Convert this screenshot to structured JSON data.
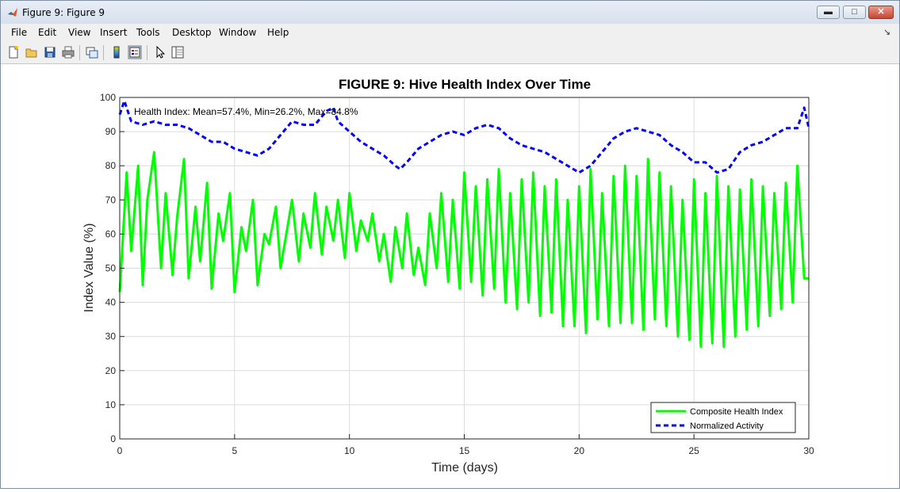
{
  "window": {
    "title": "Figure 9: Figure 9",
    "icon": "matlab-icon",
    "controls": [
      "minimize-icon",
      "maximize-icon",
      "close-icon"
    ]
  },
  "menu": {
    "items": [
      "File",
      "Edit",
      "View",
      "Insert",
      "Tools",
      "Desktop",
      "Window",
      "Help"
    ]
  },
  "toolbar": {
    "icons": [
      "new-figure-icon",
      "open-file-icon",
      "save-icon",
      "print-icon",
      "link-plot-icon",
      "colorbar-icon",
      "legend-icon",
      "select-pointer-icon",
      "property-editor-icon"
    ]
  },
  "chart_data": {
    "type": "line",
    "title": "FIGURE 9: Hive Health Index Over Time",
    "xlabel": "Time (days)",
    "ylabel": "Index Value (%)",
    "xlim": [
      0,
      30
    ],
    "ylim": [
      0,
      100
    ],
    "xticks": [
      0,
      5,
      10,
      15,
      20,
      25,
      30
    ],
    "yticks": [
      0,
      10,
      20,
      30,
      40,
      50,
      60,
      70,
      80,
      90,
      100
    ],
    "grid": true,
    "legend_position": "bottom-right",
    "annotation": "Health Index: Mean=57.4%, Min=26.2%, Max=84.8%",
    "series": [
      {
        "name": "Composite Health Index",
        "color": "#00ff00",
        "style": "solid",
        "x": [
          0,
          0.3,
          0.5,
          0.8,
          1.0,
          1.2,
          1.5,
          1.8,
          2.0,
          2.3,
          2.5,
          2.8,
          3.0,
          3.3,
          3.5,
          3.8,
          4.0,
          4.3,
          4.5,
          4.8,
          5.0,
          5.3,
          5.5,
          5.8,
          6.0,
          6.3,
          6.5,
          6.8,
          7.0,
          7.3,
          7.5,
          7.8,
          8.0,
          8.3,
          8.5,
          8.8,
          9.0,
          9.3,
          9.5,
          9.8,
          10.0,
          10.3,
          10.5,
          10.8,
          11.0,
          11.3,
          11.5,
          11.8,
          12.0,
          12.3,
          12.5,
          12.8,
          13.0,
          13.3,
          13.5,
          13.8,
          14.0,
          14.3,
          14.5,
          14.8,
          15.0,
          15.3,
          15.5,
          15.8,
          16.0,
          16.3,
          16.5,
          16.8,
          17.0,
          17.3,
          17.5,
          17.8,
          18.0,
          18.3,
          18.5,
          18.8,
          19.0,
          19.3,
          19.5,
          19.8,
          20.0,
          20.3,
          20.5,
          20.8,
          21.0,
          21.3,
          21.5,
          21.8,
          22.0,
          22.3,
          22.5,
          22.8,
          23.0,
          23.3,
          23.5,
          23.8,
          24.0,
          24.3,
          24.5,
          24.8,
          25.0,
          25.3,
          25.5,
          25.8,
          26.0,
          26.3,
          26.5,
          26.8,
          27.0,
          27.3,
          27.5,
          27.8,
          28.0,
          28.3,
          28.5,
          28.8,
          29.0,
          29.3,
          29.5,
          29.8,
          30.0
        ],
        "y": [
          43,
          78,
          55,
          80,
          45,
          70,
          84,
          50,
          72,
          48,
          65,
          82,
          47,
          68,
          52,
          75,
          44,
          66,
          58,
          72,
          43,
          62,
          55,
          70,
          45,
          60,
          57,
          68,
          50,
          62,
          70,
          52,
          66,
          56,
          72,
          54,
          68,
          58,
          70,
          53,
          72,
          55,
          64,
          58,
          66,
          52,
          60,
          46,
          62,
          50,
          66,
          48,
          56,
          45,
          66,
          50,
          72,
          46,
          70,
          44,
          78,
          46,
          74,
          42,
          76,
          44,
          79,
          40,
          72,
          38,
          76,
          40,
          78,
          36,
          74,
          37,
          76,
          33,
          70,
          33,
          74,
          31,
          79,
          35,
          72,
          33,
          77,
          34,
          80,
          34,
          77,
          32,
          82,
          35,
          78,
          33,
          74,
          30,
          70,
          29,
          76,
          27,
          72,
          28,
          77,
          27,
          74,
          30,
          73,
          32,
          76,
          33,
          74,
          36,
          72,
          38,
          75,
          40,
          80,
          47,
          47
        ]
      },
      {
        "name": "Normalized Activity",
        "color": "#0000ff",
        "style": "dashed",
        "x": [
          0,
          0.2,
          0.5,
          1.0,
          1.5,
          2.0,
          2.5,
          3.0,
          3.5,
          4.0,
          4.5,
          5.0,
          5.5,
          6.0,
          6.5,
          7.0,
          7.5,
          8.0,
          8.5,
          9.0,
          9.3,
          9.5,
          10.0,
          10.5,
          11.0,
          11.5,
          12.0,
          12.2,
          12.5,
          13.0,
          13.5,
          14.0,
          14.5,
          15.0,
          15.5,
          16.0,
          16.5,
          17.0,
          17.5,
          18.0,
          18.5,
          19.0,
          19.5,
          20.0,
          20.5,
          21.0,
          21.5,
          22.0,
          22.5,
          23.0,
          23.5,
          24.0,
          24.5,
          25.0,
          25.5,
          26.0,
          26.5,
          27.0,
          27.5,
          28.0,
          28.5,
          29.0,
          29.5,
          29.8,
          30.0
        ],
        "y": [
          95,
          99,
          93,
          92,
          93,
          92,
          92,
          91,
          89,
          87,
          87,
          85,
          84,
          83,
          85,
          89,
          93,
          92,
          92,
          96,
          97,
          93,
          90,
          87,
          85,
          83,
          80,
          79,
          81,
          85,
          87,
          89,
          90,
          89,
          91,
          92,
          91,
          88,
          86,
          85,
          84,
          82,
          80,
          78,
          80,
          84,
          88,
          90,
          91,
          90,
          89,
          86,
          84,
          81,
          81,
          78,
          79,
          84,
          86,
          87,
          89,
          91,
          91,
          97,
          91
        ]
      }
    ]
  }
}
